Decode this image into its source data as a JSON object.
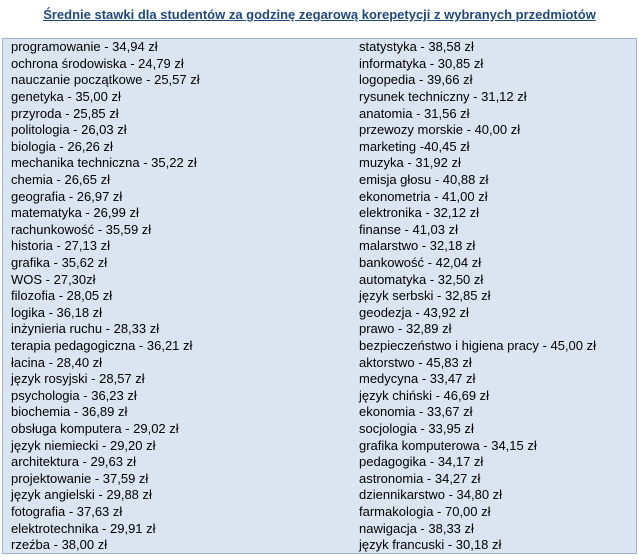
{
  "title": "Średnie stawki dla studentów za godzinę zegarową korepetycji z wybranych przedmiotów",
  "table": {
    "rows": [
      [
        "programowanie - 34,94 zł",
        "statystyka - 38,58 zł"
      ],
      [
        "ochrona środowiska - 24,79 zł",
        "informatyka - 30,85 zł"
      ],
      [
        "nauczanie początkowe - 25,57 zł",
        "logopedia - 39,66 zł"
      ],
      [
        "genetyka - 35,00 zł",
        "rysunek techniczny - 31,12 zł"
      ],
      [
        "przyroda - 25,85 zł",
        "anatomia - 31,56 zł"
      ],
      [
        "politologia - 26,03 zł",
        "przewozy morskie - 40,00 zł"
      ],
      [
        "biologia - 26,26 zł",
        "marketing -40,45 zł"
      ],
      [
        "mechanika techniczna - 35,22 zł",
        "muzyka - 31,92 zł"
      ],
      [
        "chemia - 26,65 zł",
        "emisja głosu - 40,88 zł"
      ],
      [
        "geografia - 26,97 zł",
        "ekonometria - 41,00 zł"
      ],
      [
        "matematyka - 26,99 zł",
        "elektronika - 32,12 zł"
      ],
      [
        "rachunkowość - 35,59 zł",
        "finanse - 41,03 zł"
      ],
      [
        "historia - 27,13 zł",
        "malarstwo - 32,18 zł"
      ],
      [
        "grafika - 35,62 zł",
        "bankowość - 42,04 zł"
      ],
      [
        "WOS - 27,30zł",
        "automatyka - 32,50 zł"
      ],
      [
        "filozofia - 28,05 zł",
        "język serbski - 32,85 zł"
      ],
      [
        "logika - 36,18 zł",
        "geodezja - 43,92 zł"
      ],
      [
        "inżynieria ruchu - 28,33 zł",
        "prawo - 32,89 zł"
      ],
      [
        "terapia pedagogiczna - 36,21 zł",
        "bezpieczeństwo i higiena pracy - 45,00 zł"
      ],
      [
        "łacina - 28,40 zł",
        "aktorstwo - 45,83 zł"
      ],
      [
        "język rosyjski - 28,57 zł",
        "medycyna - 33,47 zł"
      ],
      [
        "psychologia - 36,23 zł",
        "język chiński - 46,69 zł"
      ],
      [
        "biochemia - 36,89 zł",
        "ekonomia - 33,67 zł"
      ],
      [
        "obsługa komputera - 29,02 zł",
        "socjologia - 33,95 zł"
      ],
      [
        "język niemiecki - 29,20 zł",
        "grafika komputerowa - 34,15 zł"
      ],
      [
        "architektura - 29,63 zł",
        "pedagogika - 34,17 zł"
      ],
      [
        "projektowanie - 37,59 zł",
        "astronomia - 34,27 zł"
      ],
      [
        "język angielski - 29,88 zł",
        "dziennikarstwo - 34,80 zł"
      ],
      [
        "fotografia - 37,63 zł",
        "farmakologia - 70,00 zł"
      ],
      [
        "elektrotechnika - 29,91 zł",
        "nawigacja - 38,33 zł"
      ],
      [
        "rzeźba - 38,00 zł",
        "język francuski - 30,18 zł"
      ]
    ]
  }
}
